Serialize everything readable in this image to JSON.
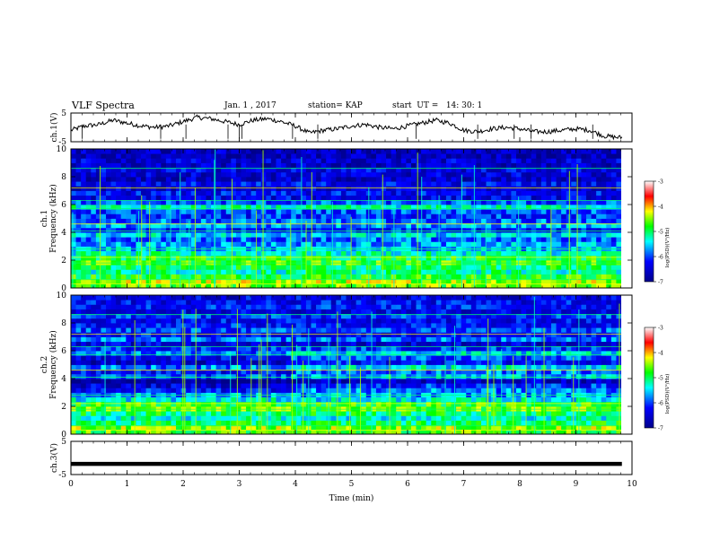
{
  "header": {
    "title": "VLF Spectra",
    "date": "Jan. 1 , 2017",
    "station": "station= KAP",
    "start": "start  UT =   14: 30: 1"
  },
  "colors": {
    "black": "#000000",
    "background": "#ffffff"
  },
  "chart_data": [
    {
      "type": "line",
      "ylabel": "ch.1(V)",
      "ylim": [
        -5,
        5
      ],
      "yticks": [
        "5",
        "-5"
      ],
      "x": [
        0,
        0.25,
        0.5,
        0.75,
        1,
        1.25,
        1.5,
        1.75,
        2,
        2.25,
        2.5,
        2.75,
        3,
        3.25,
        3.5,
        3.75,
        4,
        4.25,
        4.5,
        4.75,
        5,
        5.25,
        5.5,
        5.75,
        6,
        6.25,
        6.5,
        6.75,
        7,
        7.25,
        7.5,
        7.75,
        8,
        8.25,
        8.5,
        8.75,
        9,
        9.25,
        9.5,
        9.75,
        9.82
      ],
      "y": [
        -1,
        0.5,
        1,
        2.5,
        1.5,
        0.5,
        0,
        0.5,
        2,
        3.5,
        3,
        2,
        1,
        2.5,
        3,
        2,
        0.5,
        -2,
        -1,
        -0.5,
        0.5,
        1,
        0,
        -0.5,
        0.5,
        1.5,
        2.5,
        1.5,
        -1,
        -1.5,
        -0.5,
        0,
        -0.5,
        -1.5,
        -1.5,
        -1,
        -0.5,
        -1,
        -3,
        -3.5,
        -3.5
      ]
    },
    {
      "type": "heatmap",
      "ylabel": "ch.1\nFrequency (kHz)",
      "ylim": [
        0,
        10
      ],
      "yticks": [
        "0",
        "2",
        "4",
        "6",
        "8",
        "10"
      ],
      "xlim": [
        0,
        10
      ],
      "colorbar": {
        "label": "log(PSD)(V²/Hz)",
        "range": [
          -7,
          -3
        ],
        "ticks": [
          "-3",
          "-4",
          "-5",
          "-6",
          "-7"
        ]
      },
      "band_levels": [
        -4.6,
        -4.4,
        -4.8,
        -5.2,
        -5.0,
        -4.7,
        -4.9,
        -5.3,
        -5.6,
        -5.7,
        -5.9,
        -5.5,
        -6.2,
        -5.7,
        -5.9,
        -6.1,
        -6.0,
        -5.3,
        -6.0,
        -6.4,
        -6.3,
        -6.5,
        -6.3,
        -6.6,
        -6.5,
        -6.4,
        -6.6,
        -6.5,
        -6.7,
        -6.6
      ]
    },
    {
      "type": "heatmap",
      "ylabel": "ch.2\nFrequency (kHz)",
      "ylim": [
        0,
        10
      ],
      "yticks": [
        "0",
        "2",
        "4",
        "6",
        "8",
        "10"
      ],
      "xlim": [
        0,
        10
      ],
      "colorbar": {
        "label": "log(PSD)(V²/Hz)",
        "range": [
          -7,
          -3
        ],
        "ticks": [
          "-3",
          "-4",
          "-5",
          "-6",
          "-7"
        ]
      },
      "band_levels": [
        -4.7,
        -4.5,
        -5.0,
        -5.3,
        -5.0,
        -4.6,
        -4.8,
        -5.4,
        -5.7,
        -5.8,
        -6.1,
        -6.6,
        -5.6,
        -5.9,
        -5.4,
        -6.2,
        -6.0,
        -5.5,
        -6.1,
        -6.5,
        -5.9,
        -6.3,
        -6.0,
        -6.2,
        -6.3,
        -6.1,
        -6.4,
        -6.2,
        -6.3,
        -6.4
      ]
    },
    {
      "type": "line",
      "ylabel": "ch.3(V)",
      "ylim": [
        -5,
        5
      ],
      "yticks": [
        "5",
        "-5"
      ],
      "x": [
        0,
        9.82
      ],
      "y": [
        -1.8,
        -1.8
      ]
    }
  ],
  "xaxis": {
    "label": "Time (min)",
    "ticks": [
      "0",
      "1",
      "2",
      "3",
      "4",
      "5",
      "6",
      "7",
      "8",
      "9",
      "10"
    ],
    "range": [
      0,
      10
    ]
  }
}
